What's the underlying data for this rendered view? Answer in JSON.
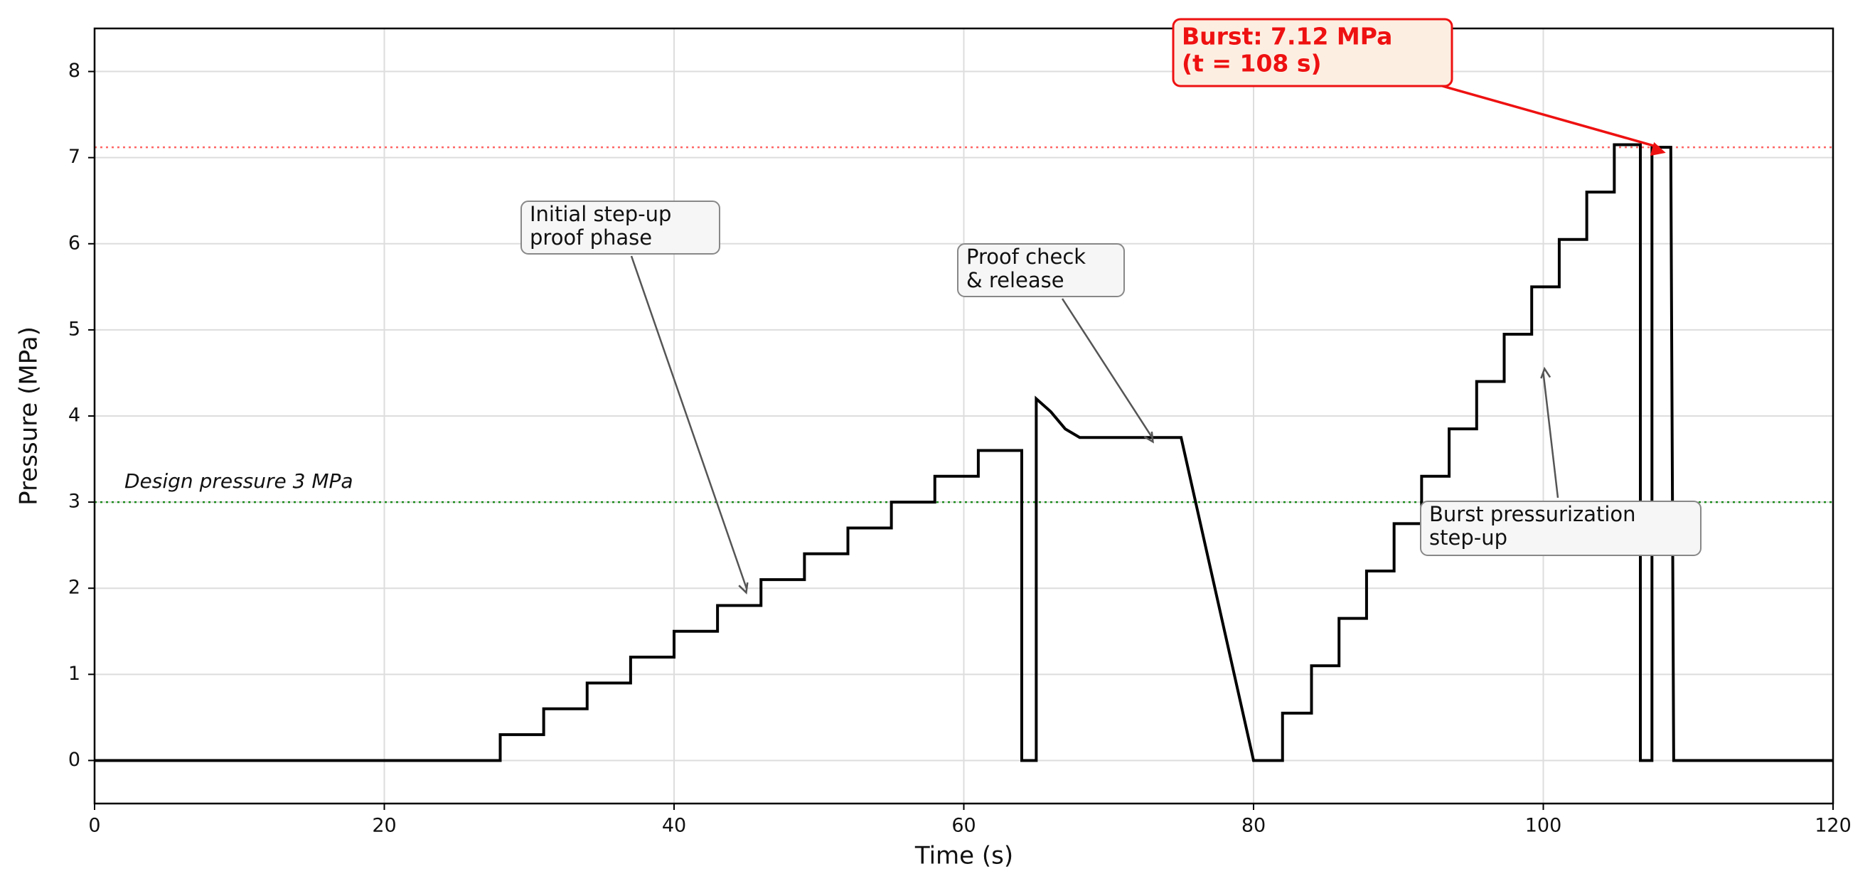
{
  "chart_data": {
    "type": "line",
    "x_label": "Time (s)",
    "y_label": "Pressure (MPa)",
    "xlim": [
      0,
      120
    ],
    "ylim": [
      -0.5,
      8.5
    ],
    "xticks": [
      0,
      20,
      40,
      60,
      80,
      100,
      120
    ],
    "yticks": [
      0,
      1,
      2,
      3,
      4,
      5,
      6,
      7,
      8
    ],
    "grid": true,
    "series": [
      {
        "color": "#000000",
        "x": [
          0,
          28,
          28,
          31,
          31,
          34,
          34,
          37,
          37,
          40,
          40,
          43,
          43,
          46,
          46,
          49,
          49,
          52,
          52,
          55,
          55,
          58,
          58,
          61,
          61,
          64,
          64,
          65,
          65,
          66,
          67,
          68,
          75,
          80,
          82,
          82,
          84,
          84,
          85.9,
          85.9,
          87.8,
          87.8,
          89.7,
          89.7,
          91.6,
          91.6,
          93.5,
          93.5,
          95.4,
          95.4,
          97.3,
          97.3,
          99.2,
          99.2,
          101.1,
          101.1,
          103,
          103,
          104.9,
          104.9,
          106.7,
          106.7,
          107.5,
          107.5,
          108.8,
          109,
          120
        ],
        "values": [
          0,
          0,
          0.3,
          0.3,
          0.6,
          0.6,
          0.9,
          0.9,
          1.2,
          1.2,
          1.5,
          1.5,
          1.8,
          1.8,
          2.1,
          2.1,
          2.4,
          2.4,
          2.7,
          2.7,
          3.0,
          3.0,
          3.3,
          3.3,
          3.6,
          3.6,
          0,
          0,
          4.2,
          4.05,
          3.85,
          3.75,
          3.75,
          0,
          0,
          0.55,
          0.55,
          1.1,
          1.1,
          1.65,
          1.65,
          2.2,
          2.2,
          2.75,
          2.75,
          3.3,
          3.3,
          3.85,
          3.85,
          4.4,
          4.4,
          4.95,
          4.95,
          5.5,
          5.5,
          6.05,
          6.05,
          6.6,
          6.6,
          7.15,
          7.15,
          0,
          0,
          7.12,
          7.12,
          0,
          0
        ]
      }
    ],
    "reference_lines": [
      {
        "value": 3,
        "label": "Design pressure 3 MPa",
        "color": "#1a8a1a"
      },
      {
        "value": 7.12,
        "color": "#ff6666"
      }
    ],
    "annotations": [
      {
        "text": [
          "Initial step-up",
          "proof phase"
        ],
        "xy": [
          45,
          2.0
        ]
      },
      {
        "text": [
          "Proof check",
          "& release"
        ],
        "xy": [
          73,
          3.75
        ]
      },
      {
        "text": [
          "Burst pressurization",
          "step-up"
        ],
        "xy": [
          100,
          4.5
        ]
      },
      {
        "text": [
          "Burst: 7.12 MPa",
          "(t = 108 s)"
        ],
        "xy": [
          108,
          7.12
        ],
        "color": "#ee1111"
      }
    ]
  }
}
